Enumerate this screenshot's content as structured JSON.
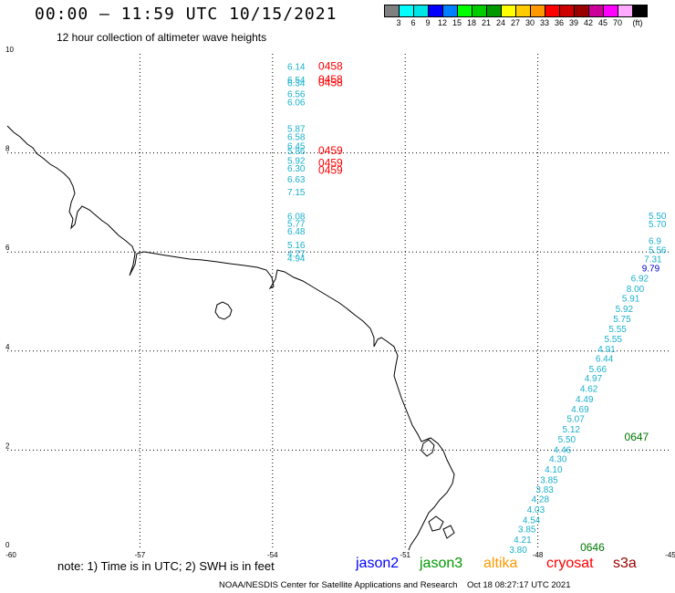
{
  "header": {
    "title": "00:00 – 11:59 UTC 10/15/2021",
    "subtitle": "12 hour collection of altimeter wave heights"
  },
  "color_scale": {
    "colors": [
      "#808080",
      "#00ffff",
      "#00e5e5",
      "#0000ff",
      "#0080ff",
      "#00ff00",
      "#00cc00",
      "#009900",
      "#ffff00",
      "#ffcc00",
      "#ff9900",
      "#ff0000",
      "#cc0000",
      "#990000",
      "#cc0099",
      "#ff00ff",
      "#ffaaff",
      "#000000"
    ],
    "labels": [
      "3",
      "6",
      "9",
      "12",
      "15",
      "18",
      "21",
      "24",
      "27",
      "30",
      "33",
      "36",
      "39",
      "42",
      "45",
      "70",
      "(ft)"
    ]
  },
  "axes": {
    "x_ticks": [
      "-60",
      "-57",
      "-54",
      "-51",
      "-48",
      "-45"
    ],
    "y_ticks": [
      "0",
      "2",
      "4",
      "6",
      "8",
      "10"
    ],
    "xlim": [
      -60,
      -45
    ],
    "ylim": [
      0,
      10
    ]
  },
  "track_a": {
    "color": "#1ab0cc",
    "lon": -53.5,
    "points": [
      {
        "lat": 9.75,
        "v": "6.14"
      },
      {
        "lat": 9.48,
        "v": "6.54"
      },
      {
        "lat": 9.42,
        "v": "6.34"
      },
      {
        "lat": 9.2,
        "v": "6.56"
      },
      {
        "lat": 9.03,
        "v": "6.06"
      },
      {
        "lat": 8.5,
        "v": "5.87"
      },
      {
        "lat": 8.33,
        "v": "6.58"
      },
      {
        "lat": 8.15,
        "v": "6.45"
      },
      {
        "lat": 8.05,
        "v": "5.86"
      },
      {
        "lat": 7.85,
        "v": "5.92"
      },
      {
        "lat": 7.7,
        "v": "6.30"
      },
      {
        "lat": 7.48,
        "v": "6.63"
      },
      {
        "lat": 7.22,
        "v": "7.15"
      },
      {
        "lat": 6.73,
        "v": "6.08"
      },
      {
        "lat": 6.58,
        "v": "5.77"
      },
      {
        "lat": 6.43,
        "v": "6.48"
      },
      {
        "lat": 6.15,
        "v": "5.16"
      },
      {
        "lat": 5.98,
        "v": "4.77"
      },
      {
        "lat": 5.88,
        "v": "4.94"
      }
    ],
    "time_labels": [
      {
        "lat": 9.75,
        "t": "0458"
      },
      {
        "lat": 9.48,
        "t": "0458"
      },
      {
        "lat": 9.42,
        "t": "0458"
      },
      {
        "lat": 8.05,
        "t": "0459"
      },
      {
        "lat": 7.8,
        "t": "0459"
      },
      {
        "lat": 7.65,
        "t": "0459"
      }
    ],
    "time_color": "#ff0000"
  },
  "track_b": {
    "color": "#1ab0cc",
    "points": [
      {
        "lon": -45.0,
        "lat": 6.74,
        "v": "5.50"
      },
      {
        "lon": -45.0,
        "lat": 6.57,
        "v": "5.70"
      },
      {
        "lon": -45.0,
        "lat": 6.23,
        "v": "6.9"
      },
      {
        "lon": -45.0,
        "lat": 6.05,
        "v": "5.56"
      },
      {
        "lon": -45.1,
        "lat": 5.87,
        "v": "7.31"
      },
      {
        "lon": -45.15,
        "lat": 5.68,
        "v": "9.79",
        "color": "#0000cc"
      },
      {
        "lon": -45.4,
        "lat": 5.48,
        "v": "6.92"
      },
      {
        "lon": -45.5,
        "lat": 5.27,
        "v": "8.00"
      },
      {
        "lon": -45.6,
        "lat": 5.07,
        "v": "5.91"
      },
      {
        "lon": -45.75,
        "lat": 4.86,
        "v": "5.92"
      },
      {
        "lon": -45.8,
        "lat": 4.66,
        "v": "5.75"
      },
      {
        "lon": -45.9,
        "lat": 4.46,
        "v": "5.55"
      },
      {
        "lon": -46.0,
        "lat": 4.25,
        "v": "5.55"
      },
      {
        "lon": -46.15,
        "lat": 4.05,
        "v": "4.91"
      },
      {
        "lon": -46.2,
        "lat": 3.86,
        "v": "6.44"
      },
      {
        "lon": -46.35,
        "lat": 3.65,
        "v": "5.66"
      },
      {
        "lon": -46.45,
        "lat": 3.46,
        "v": "4.97"
      },
      {
        "lon": -46.55,
        "lat": 3.25,
        "v": "4.62"
      },
      {
        "lon": -46.65,
        "lat": 3.04,
        "v": "4.49"
      },
      {
        "lon": -46.75,
        "lat": 2.84,
        "v": "4.69"
      },
      {
        "lon": -46.85,
        "lat": 2.64,
        "v": "5.07"
      },
      {
        "lon": -46.95,
        "lat": 2.43,
        "v": "5.12"
      },
      {
        "lon": -47.05,
        "lat": 2.23,
        "v": "5.50"
      },
      {
        "lon": -47.15,
        "lat": 2.02,
        "v": "4.46"
      },
      {
        "lon": -47.25,
        "lat": 1.83,
        "v": "4.30"
      },
      {
        "lon": -47.35,
        "lat": 1.62,
        "v": "4.10"
      },
      {
        "lon": -47.45,
        "lat": 1.41,
        "v": "3.85"
      },
      {
        "lon": -47.55,
        "lat": 1.22,
        "v": "3.83"
      },
      {
        "lon": -47.65,
        "lat": 1.02,
        "v": "4.28"
      },
      {
        "lon": -47.75,
        "lat": 0.81,
        "v": "4.03"
      },
      {
        "lon": -47.85,
        "lat": 0.6,
        "v": "4.54"
      },
      {
        "lon": -47.95,
        "lat": 0.41,
        "v": "3.85"
      },
      {
        "lon": -48.05,
        "lat": 0.2,
        "v": "4.21"
      },
      {
        "lon": -48.15,
        "lat": 0.0,
        "v": "3.80"
      }
    ],
    "time_labels": [
      {
        "lon": -46.0,
        "lat": 2.23,
        "t": "0647"
      },
      {
        "lon": -47.0,
        "lat": 0.0,
        "t": "0646"
      }
    ],
    "time_color": "#007700"
  },
  "legend": {
    "note": "note:  1) Time is in UTC;  2) SWH is in feet",
    "missions": [
      {
        "name": "jason2",
        "color": "#0000ff"
      },
      {
        "name": "jason3",
        "color": "#009900"
      },
      {
        "name": "altika",
        "color": "#ff9900"
      },
      {
        "name": "cryosat",
        "color": "#ff0000"
      },
      {
        "name": "s3a",
        "color": "#990000"
      }
    ]
  },
  "footer": {
    "left": "NOAA/NESDIS Center for Satellite Applications and Research",
    "right": "Oct 18 08:27:17 UTC 2021"
  }
}
